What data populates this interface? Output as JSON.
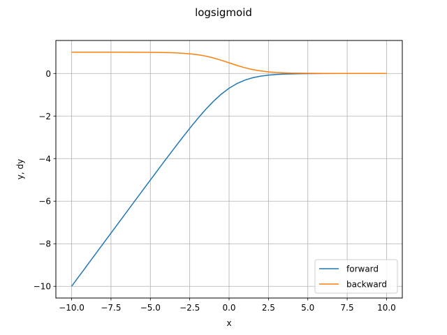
{
  "chart_data": {
    "type": "line",
    "title": "logsigmoid",
    "xlabel": "x",
    "ylabel": "y, dy",
    "xlim": [
      -11.0,
      11.0
    ],
    "ylim": [
      -10.55,
      1.55
    ],
    "x_ticks": [
      -10.0,
      -7.5,
      -5.0,
      -2.5,
      0.0,
      2.5,
      5.0,
      7.5,
      10.0
    ],
    "x_tick_labels": [
      "−10.0",
      "−7.5",
      "−5.0",
      "−2.5",
      "0.0",
      "2.5",
      "5.0",
      "7.5",
      "10.0"
    ],
    "y_ticks": [
      -10,
      -8,
      -6,
      -4,
      -2,
      0
    ],
    "y_tick_labels": [
      "−10",
      "−8",
      "−6",
      "−4",
      "−2",
      "0"
    ],
    "grid": true,
    "legend_position": "lower-right",
    "x": [
      -10.0,
      -9.0,
      -8.0,
      -7.0,
      -6.0,
      -5.0,
      -4.5,
      -4.0,
      -3.5,
      -3.0,
      -2.5,
      -2.0,
      -1.5,
      -1.0,
      -0.5,
      0.0,
      0.5,
      1.0,
      1.5,
      2.0,
      2.5,
      3.0,
      3.5,
      4.0,
      4.5,
      5.0,
      6.0,
      7.0,
      8.0,
      9.0,
      10.0
    ],
    "series": [
      {
        "name": "forward",
        "color": "#1f77b4",
        "values": [
          -10.0,
          -9.0,
          -8.0,
          -7.001,
          -6.002,
          -5.007,
          -4.511,
          -4.018,
          -3.53,
          -3.049,
          -2.579,
          -2.127,
          -1.701,
          -1.313,
          -0.974,
          -0.693,
          -0.474,
          -0.313,
          -0.201,
          -0.127,
          -0.079,
          -0.049,
          -0.03,
          -0.018,
          -0.011,
          -0.007,
          -0.002,
          -0.001,
          0.0,
          0.0,
          0.0
        ]
      },
      {
        "name": "backward",
        "color": "#ff7f0e",
        "values": [
          1.0,
          1.0,
          1.0,
          0.999,
          0.998,
          0.993,
          0.989,
          0.982,
          0.971,
          0.953,
          0.924,
          0.881,
          0.818,
          0.731,
          0.622,
          0.5,
          0.378,
          0.269,
          0.182,
          0.119,
          0.076,
          0.047,
          0.029,
          0.018,
          0.011,
          0.007,
          0.002,
          0.001,
          0.0,
          0.0,
          0.0
        ]
      }
    ]
  }
}
